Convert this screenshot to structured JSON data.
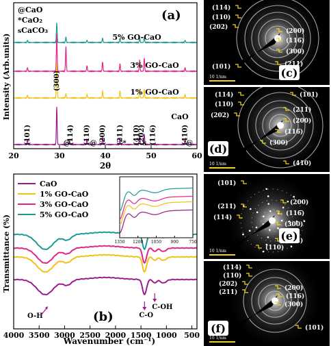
{
  "chart_data": [
    {
      "panel": "(a)",
      "type": "line",
      "xlabel": "2θ",
      "ylabel": "Intensity (Arb.units)",
      "xlim": [
        20,
        60
      ],
      "xticks": [
        20,
        30,
        40,
        50,
        60
      ],
      "legend_markers": [
        {
          "symbol": "@",
          "name": "CaO"
        },
        {
          "symbol": "*",
          "name": "CaO₂"
        },
        {
          "symbol": "s",
          "name": "CaCO₃"
        }
      ],
      "series": [
        {
          "name": "5% GO-CaO",
          "color": "#1a9a96",
          "peaks": [
            [
              23.0,
              0.1
            ],
            [
              29.4,
              0.9
            ],
            [
              31.4,
              0.25
            ],
            [
              36.0,
              0.1
            ],
            [
              39.4,
              0.2
            ],
            [
              43.2,
              0.15
            ],
            [
              47.5,
              0.2
            ],
            [
              48.5,
              0.2
            ],
            [
              57.4,
              0.1
            ]
          ]
        },
        {
          "name": "3% GO-CaO",
          "color": "#e3248a",
          "peaks": [
            [
              23.0,
              0.1
            ],
            [
              29.4,
              1.0
            ],
            [
              31.4,
              0.65
            ],
            [
              36.0,
              0.15
            ],
            [
              39.4,
              0.25
            ],
            [
              43.2,
              0.2
            ],
            [
              47.5,
              0.3
            ],
            [
              48.5,
              0.35
            ],
            [
              57.4,
              0.1
            ]
          ]
        },
        {
          "name": "1% GO-CaO",
          "color": "#f2c213",
          "peaks": [
            [
              23.0,
              0.08
            ],
            [
              29.4,
              1.0
            ],
            [
              31.4,
              0.12
            ],
            [
              36.0,
              0.1
            ],
            [
              39.4,
              0.2
            ],
            [
              43.2,
              0.2
            ],
            [
              47.5,
              0.25
            ],
            [
              48.5,
              0.25
            ],
            [
              57.4,
              0.1
            ]
          ]
        },
        {
          "name": "CaO",
          "color": "#9b1a8e",
          "peaks": [
            [
              23.0,
              0.12
            ],
            [
              29.4,
              1.0
            ],
            [
              32.2,
              0.1
            ],
            [
              36.0,
              0.15
            ],
            [
              39.4,
              0.2
            ],
            [
              43.2,
              0.18
            ],
            [
              47.5,
              0.25
            ],
            [
              48.5,
              0.28
            ],
            [
              57.4,
              0.12
            ]
          ]
        }
      ],
      "annotations": [
        {
          "text": "(101)",
          "x": 23.0
        },
        {
          "text": "(300)",
          "x": 29.4
        },
        {
          "text": "@",
          "x": 31.6
        },
        {
          "text": "(114)",
          "x": 32.4
        },
        {
          "text": "(110)",
          "x": 36.0
        },
        {
          "text": "@",
          "x": 37.4
        },
        {
          "text": "(200)",
          "x": 39.4
        },
        {
          "text": "(211)",
          "x": 43.2
        },
        {
          "text": "*",
          "x": 44.2
        },
        {
          "text": "(410)",
          "x": 46.8
        },
        {
          "text": "(202)",
          "x": 47.9
        },
        {
          "text": "s",
          "x": 48.6
        },
        {
          "text": "(116)",
          "x": 50.4
        },
        {
          "text": "(410)",
          "x": 57.4
        },
        {
          "text": "@",
          "x": 58.4
        }
      ]
    },
    {
      "panel": "(b)",
      "type": "line",
      "xlabel": "Wavenumber (cm⁻¹)",
      "ylabel": "Transmittance (%)",
      "xlim": [
        4000,
        400
      ],
      "xticks": [
        4000,
        3500,
        3000,
        2500,
        2000,
        1500,
        1000,
        500
      ],
      "series": [
        {
          "name": "CaO",
          "color": "#9b1a8e"
        },
        {
          "name": "1% GO-CaO",
          "color": "#f2c213"
        },
        {
          "name": "3% GO-CaO",
          "color": "#e3248a"
        },
        {
          "name": "5% GO-CaO",
          "color": "#1a9a96"
        }
      ],
      "annotations": [
        {
          "text": "O-H",
          "x": 3440
        },
        {
          "text": "C-O",
          "x": 1430
        },
        {
          "text": "C-OH",
          "x": 1230
        }
      ],
      "inset": {
        "xlim": [
          1350,
          750
        ],
        "xticks": [
          1350,
          1200,
          1050,
          900,
          750
        ]
      }
    }
  ],
  "panels": {
    "a_label": "(a)",
    "b_label": "(b)",
    "c_label": "(c)",
    "d_label": "(d)",
    "e_label": "(e)",
    "f_label": "(f)"
  },
  "saed": [
    {
      "id": "c",
      "scale": "10 1/nm",
      "planes": [
        "(114)",
        "(110)",
        "(202)",
        "(101)",
        "(200)",
        "(116̅)",
        "(300)",
        "(211)"
      ]
    },
    {
      "id": "d",
      "scale": "10 1/nm",
      "planes": [
        "(114)",
        "(110)",
        "(202)",
        "(101)",
        "(211)",
        "(200)",
        "(116̅)",
        "(300)",
        "(410)"
      ]
    },
    {
      "id": "e",
      "scale": "10 1/nm",
      "planes": [
        "(101)",
        "(211)",
        "(114)",
        "(200)",
        "(116̅)",
        "(300)",
        "(202)",
        "(110)"
      ]
    },
    {
      "id": "f",
      "scale": "10 1/nm",
      "planes": [
        "(114)",
        "(110)",
        "(202)",
        "(211)",
        "(200)",
        "(116)",
        "(300)",
        "(101)"
      ]
    }
  ]
}
